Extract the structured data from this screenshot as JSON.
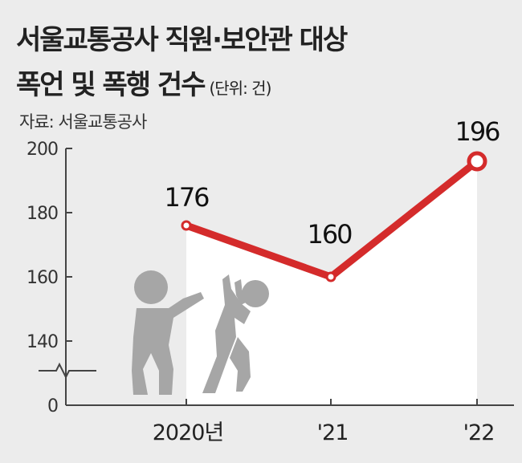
{
  "title_line1": "서울교통공사 직원·보안관 대상",
  "title_line2": "폭언 및 폭행 건수",
  "unit": "(단위: 건)",
  "source": "자료: 서울교통공사",
  "colors": {
    "line": "#d42b2b",
    "axis": "#444444",
    "background": "#ececec",
    "area": "#ffffff",
    "figure": "#a6a6a6"
  },
  "icon": "two-people-fighting-icon",
  "chart_data": {
    "type": "line",
    "categories": [
      "2020년",
      "'21",
      "'22"
    ],
    "values": [
      176,
      160,
      196
    ],
    "data_labels": [
      "176",
      "160",
      "196"
    ],
    "y_ticks": [
      0,
      140,
      160,
      180,
      200
    ],
    "y_tick_labels": [
      "0",
      "140",
      "160",
      "180",
      "200"
    ],
    "ylim": [
      0,
      200
    ],
    "axis_break": true,
    "grid": false,
    "legend": "none",
    "title": "서울교통공사 직원·보안관 대상 폭언 및 폭행 건수",
    "xlabel": "",
    "ylabel": ""
  }
}
